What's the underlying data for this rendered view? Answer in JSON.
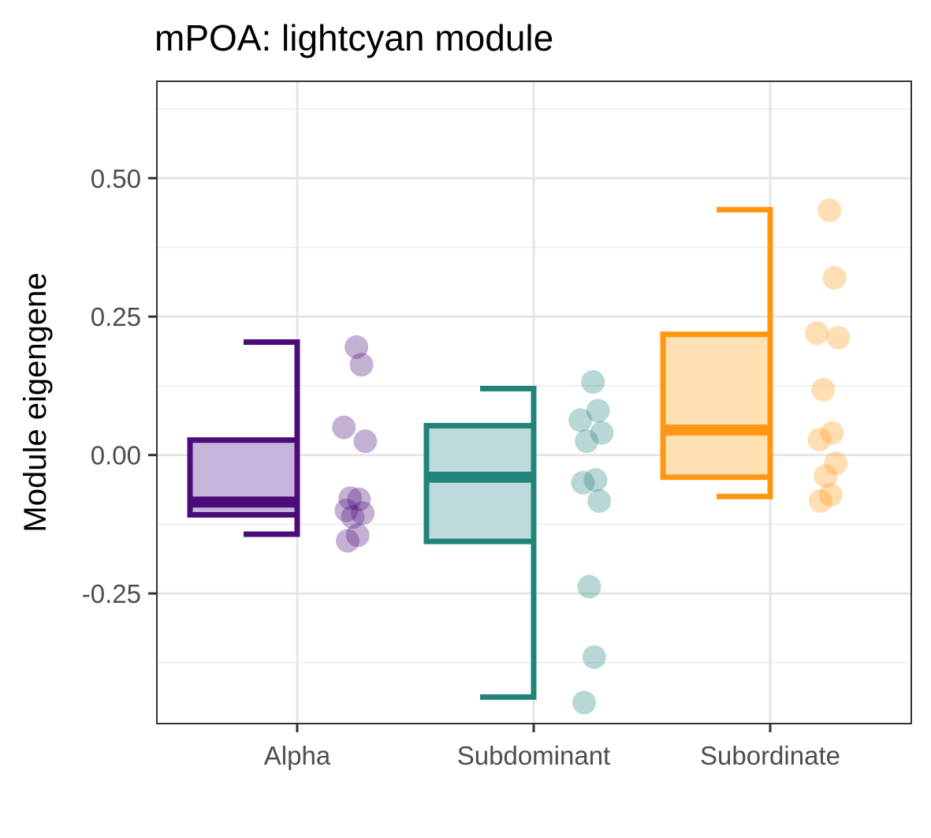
{
  "chart_data": {
    "type": "boxplot",
    "title": "mPOA: lightcyan module",
    "xlabel": "",
    "ylabel": "Module eigengene",
    "categories": [
      "Alpha",
      "Subdominant",
      "Subordinate"
    ],
    "y_ticks": [
      -0.25,
      0.0,
      0.25,
      0.5
    ],
    "y_tick_labels": [
      "-0.25",
      "0.00",
      "0.25",
      "0.50"
    ],
    "ylim": [
      -0.485,
      0.675
    ],
    "grid": true,
    "legend": "none",
    "series": [
      {
        "category": "Alpha",
        "color": "#4b0c7a",
        "fill": "#c6b4da",
        "box": {
          "whisker_low": -0.143,
          "q1": -0.108,
          "median": -0.085,
          "q3": 0.027,
          "whisker_high": 0.204
        },
        "points": [
          0.195,
          0.163,
          0.05,
          0.025,
          -0.078,
          -0.08,
          -0.1,
          -0.105,
          -0.112,
          -0.145,
          -0.155
        ]
      },
      {
        "category": "Subdominant",
        "color": "#22837b",
        "fill": "#bedbdb",
        "box": {
          "whisker_low": -0.437,
          "q1": -0.156,
          "median": -0.04,
          "q3": 0.053,
          "whisker_high": 0.12
        },
        "points": [
          0.132,
          0.08,
          0.063,
          0.04,
          0.025,
          -0.045,
          -0.05,
          -0.083,
          -0.238,
          -0.365,
          -0.447
        ]
      },
      {
        "category": "Subordinate",
        "color": "#ff9713",
        "fill": "#ffe0b3",
        "box": {
          "whisker_low": -0.075,
          "q1": -0.04,
          "median": 0.045,
          "q3": 0.218,
          "whisker_high": 0.443
        },
        "points": [
          0.442,
          0.32,
          0.22,
          0.212,
          0.118,
          0.04,
          0.028,
          -0.015,
          -0.038,
          -0.072,
          -0.083
        ]
      }
    ]
  }
}
